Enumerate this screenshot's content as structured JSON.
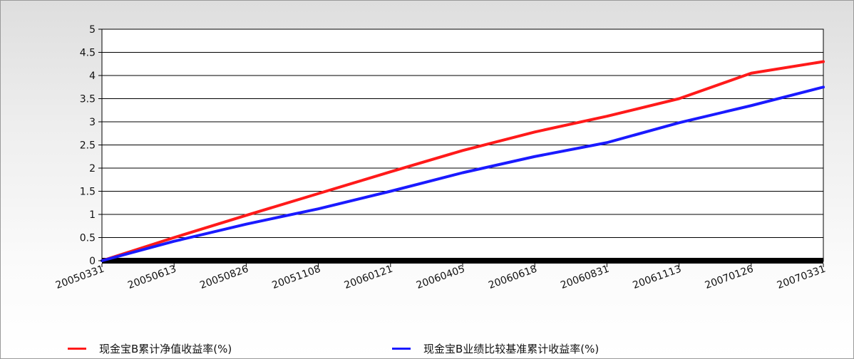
{
  "chart_data": {
    "type": "line",
    "title": "",
    "xlabel": "",
    "ylabel": "",
    "ylim": [
      0,
      5
    ],
    "yticks": [
      "5",
      "4.5",
      "4",
      "3.5",
      "3",
      "2.5",
      "2",
      "1.5",
      "1",
      "0.5",
      "0"
    ],
    "xticks": [
      "20050331",
      "20050613",
      "20050826",
      "20051108",
      "20060121",
      "20060405",
      "20060618",
      "20060831",
      "20061113",
      "20070126",
      "20070331"
    ],
    "grid": true,
    "legend_position": "bottom",
    "series": [
      {
        "name": "现金宝B累计净值收益率(%)",
        "color": "#ff1a1a",
        "values": [
          0,
          0.5,
          0.98,
          1.45,
          1.92,
          2.38,
          2.78,
          3.12,
          3.5,
          4.05,
          4.3
        ]
      },
      {
        "name": "现金宝B业绩比较基准累计收益率(%)",
        "color": "#1a1aff",
        "values": [
          0,
          0.42,
          0.79,
          1.12,
          1.5,
          1.9,
          2.25,
          2.55,
          2.98,
          3.35,
          3.75
        ]
      }
    ]
  }
}
